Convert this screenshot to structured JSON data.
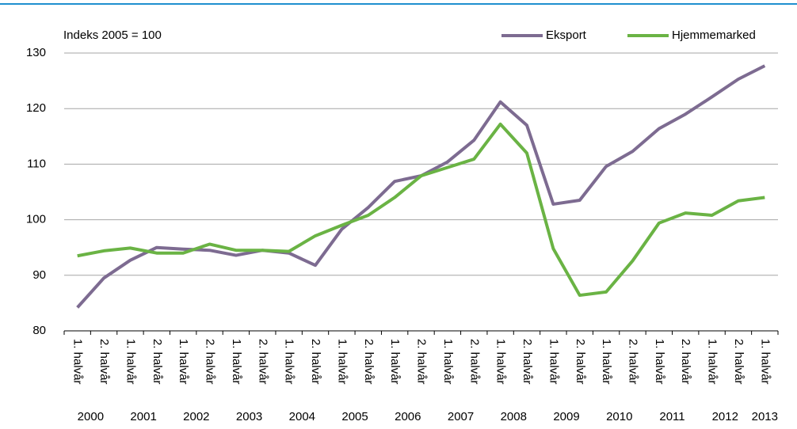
{
  "chart_data": {
    "type": "line",
    "annotation": "Indeks 2005 = 100",
    "categories": [
      "1. halvår",
      "2. halvår",
      "1. halvår",
      "2. halvår",
      "1. halvår",
      "2. halvår",
      "1. halvår",
      "2. halvår",
      "1. halvår",
      "2. halvår",
      "1. halvår",
      "2. halvår",
      "1. halvår",
      "2. halvår",
      "1. halvår",
      "2. halvår",
      "1. halvår",
      "2. halvår",
      "1. halvår",
      "2. halvår",
      "1. halvår",
      "2. halvår",
      "1. halvår",
      "2. halvår",
      "1. halvår",
      "2. halvår",
      "1. halvår"
    ],
    "year_labels": [
      "2000",
      "2001",
      "2002",
      "2003",
      "2004",
      "2005",
      "2006",
      "2007",
      "2008",
      "2009",
      "2010",
      "2011",
      "2012",
      "2013"
    ],
    "series": [
      {
        "name": "Eksport",
        "color": "#7d6b91",
        "values": [
          84.2,
          89.5,
          92.7,
          95.0,
          94.7,
          94.5,
          93.6,
          94.5,
          94.0,
          91.8,
          98.3,
          102.2,
          106.9,
          107.9,
          110.4,
          114.3,
          121.2,
          117.0,
          102.8,
          103.5,
          109.6,
          112.3,
          116.4,
          119.0,
          122.1,
          125.3,
          127.7
        ]
      },
      {
        "name": "Hjemmemarked",
        "color": "#6ab344",
        "values": [
          93.5,
          94.4,
          94.9,
          94.0,
          94.0,
          95.6,
          94.5,
          94.5,
          94.3,
          97.1,
          99.0,
          100.8,
          104.0,
          107.9,
          109.4,
          110.9,
          117.2,
          112.0,
          94.8,
          86.4,
          87.0,
          92.6,
          99.4,
          101.2,
          100.8,
          103.4,
          104.0
        ]
      }
    ],
    "ylim": [
      80,
      130
    ],
    "yticks": [
      80,
      90,
      100,
      110,
      120,
      130
    ],
    "grid": true,
    "legend": "top-right"
  }
}
